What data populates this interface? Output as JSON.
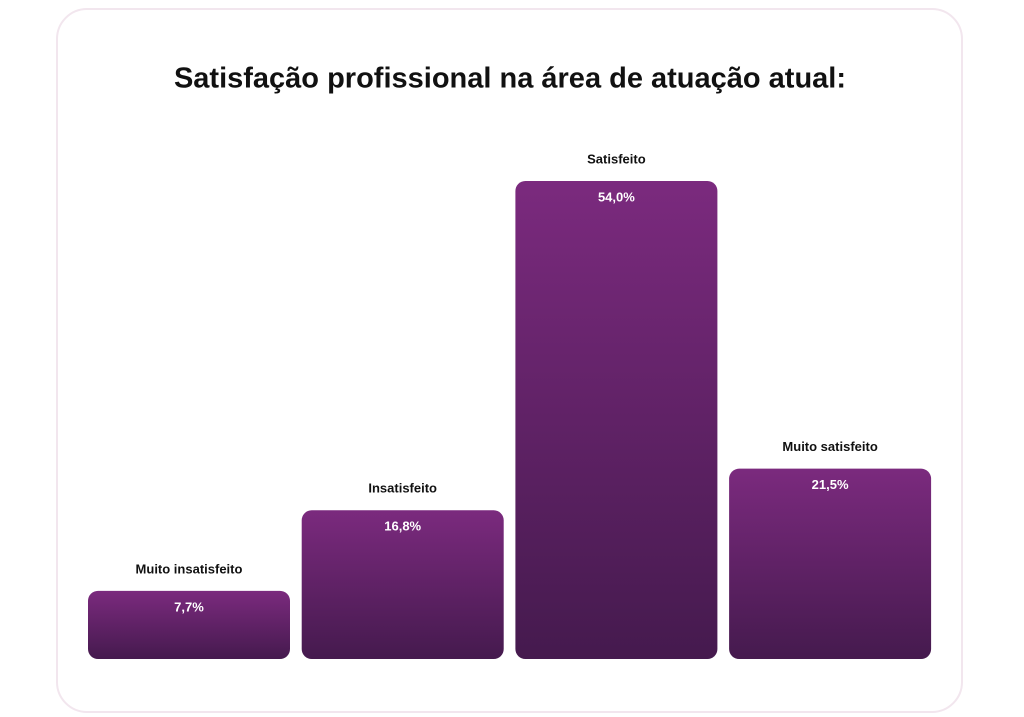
{
  "chart_data": {
    "type": "bar",
    "title": "Satisfação profissional na área de atuação atual:",
    "categories": [
      "Muito insatisfeito",
      "Insatisfeito",
      "Satisfeito",
      "Muito satisfeito"
    ],
    "values": [
      7.7,
      16.8,
      54.0,
      21.5
    ],
    "value_labels": [
      "7,7%",
      "16,8%",
      "54,0%",
      "21,5%"
    ],
    "color": "#7b2a7e"
  }
}
